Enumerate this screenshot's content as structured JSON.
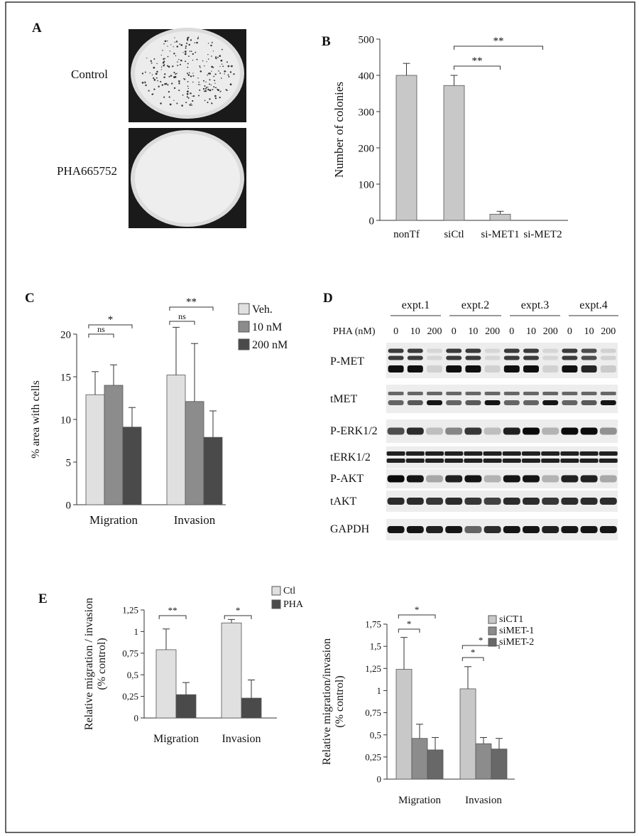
{
  "panelA": {
    "letter": "A",
    "rows": [
      {
        "label": "Control"
      },
      {
        "label": "PHA665752"
      }
    ]
  },
  "chart_data": [
    {
      "panel": "B",
      "type": "bar",
      "ylabel": "Number of colonies",
      "ylim": [
        0,
        500
      ],
      "yticks": [
        "0",
        "100",
        "200",
        "300",
        "400",
        "500"
      ],
      "categories": [
        "nonTf",
        "siCtl",
        "si-MET1",
        "si-MET2"
      ],
      "series": [
        {
          "values": [
            400,
            372,
            17,
            0
          ],
          "errors": [
            33,
            28,
            8,
            0
          ],
          "color": "#c8c8c8"
        }
      ],
      "significance": [
        {
          "from": 1,
          "to": 2,
          "label": "**"
        },
        {
          "from": 1,
          "to": 3,
          "label": "**"
        }
      ]
    },
    {
      "panel": "C",
      "type": "bar",
      "ylabel": "% area with cells",
      "ylim": [
        0,
        20
      ],
      "yticks": [
        "0",
        "5",
        "10",
        "15",
        "20"
      ],
      "categories": [
        "Migration",
        "Invasion"
      ],
      "legend_position": "top-right",
      "series": [
        {
          "name": "Veh.",
          "values": [
            12.9,
            15.2
          ],
          "errors": [
            2.7,
            5.6
          ],
          "color": "#e0e0e0"
        },
        {
          "name": "10 nM",
          "values": [
            14.0,
            12.1
          ],
          "errors": [
            2.4,
            6.8
          ],
          "color": "#8c8c8c"
        },
        {
          "name": "200 nM",
          "values": [
            9.1,
            7.9
          ],
          "errors": [
            2.3,
            3.1
          ],
          "color": "#4a4a4a"
        }
      ],
      "significance": [
        {
          "group": 0,
          "from": 0,
          "to": 1,
          "label": "ns"
        },
        {
          "group": 0,
          "from": 0,
          "to": 2,
          "label": "*"
        },
        {
          "group": 1,
          "from": 0,
          "to": 1,
          "label": "ns"
        },
        {
          "group": 1,
          "from": 0,
          "to": 2,
          "label": "**"
        }
      ]
    },
    {
      "panel": "E-left",
      "type": "bar",
      "ylabel": "Relative migration / invasion",
      "ylabel2": "(% control)",
      "ylim": [
        0,
        1.25
      ],
      "yticks": [
        "0",
        "0,25",
        "0,5",
        "0,75",
        "1",
        "1,25"
      ],
      "categories": [
        "Migration",
        "Invasion"
      ],
      "legend_position": "top-right",
      "series": [
        {
          "name": "Ctl",
          "values": [
            0.79,
            1.1
          ],
          "errors": [
            0.24,
            0.04
          ],
          "color": "#e0e0e0"
        },
        {
          "name": "PHA",
          "values": [
            0.27,
            0.23
          ],
          "errors": [
            0.14,
            0.21
          ],
          "color": "#4a4a4a"
        }
      ],
      "significance": [
        {
          "group": 0,
          "from": 0,
          "to": 1,
          "label": "**"
        },
        {
          "group": 1,
          "from": 0,
          "to": 1,
          "label": "*"
        }
      ]
    },
    {
      "panel": "E-right",
      "type": "bar",
      "ylabel": "Relative migration/invasion",
      "ylabel2": "(% control)",
      "ylim": [
        0,
        1.75
      ],
      "yticks": [
        "0",
        "0,25",
        "0,5",
        "0,75",
        "1",
        "1,25",
        "1,5",
        "1,75"
      ],
      "categories": [
        "Migration",
        "Invasion"
      ],
      "legend_position": "top-right",
      "series": [
        {
          "name": "siCT1",
          "values": [
            1.24,
            1.02
          ],
          "errors": [
            0.36,
            0.25
          ],
          "color": "#c8c8c8"
        },
        {
          "name": "siMET-1",
          "values": [
            0.46,
            0.4
          ],
          "errors": [
            0.16,
            0.07
          ],
          "color": "#8c8c8c"
        },
        {
          "name": "siMET-2",
          "values": [
            0.33,
            0.34
          ],
          "errors": [
            0.14,
            0.12
          ],
          "color": "#686868"
        }
      ],
      "significance": [
        {
          "group": 0,
          "from": 0,
          "to": 1,
          "label": "*"
        },
        {
          "group": 0,
          "from": 0,
          "to": 2,
          "label": "*"
        },
        {
          "group": 1,
          "from": 0,
          "to": 1,
          "label": "*"
        },
        {
          "group": 1,
          "from": 0,
          "to": 2,
          "label": "*"
        }
      ]
    }
  ],
  "panelD": {
    "letter": "D",
    "experiments": [
      "expt.1",
      "expt.2",
      "expt.3",
      "expt.4"
    ],
    "treatment_label": "PHA (nM)",
    "doses": [
      "0",
      "10",
      "200"
    ],
    "blots": [
      {
        "label": "P-MET",
        "intensity": [
          1,
          1,
          0.12,
          1,
          1,
          0.12,
          1,
          1,
          0.12,
          1,
          0.9,
          0.15
        ]
      },
      {
        "label": "tMET",
        "intensity": [
          0.6,
          0.65,
          0.95,
          0.6,
          0.65,
          0.95,
          0.6,
          0.6,
          0.95,
          0.6,
          0.65,
          0.95
        ]
      },
      {
        "label": "P-ERK1/2",
        "intensity": [
          0.7,
          0.85,
          0.2,
          0.45,
          0.8,
          0.2,
          0.9,
          1,
          0.25,
          1,
          1,
          0.4
        ]
      },
      {
        "label": "tERK1/2",
        "intensity": [
          0.9,
          0.9,
          0.9,
          0.9,
          0.9,
          0.9,
          0.9,
          0.9,
          0.9,
          0.9,
          0.9,
          0.9
        ]
      },
      {
        "label": "P-AKT",
        "intensity": [
          1,
          0.95,
          0.3,
          0.9,
          0.95,
          0.25,
          0.95,
          0.95,
          0.25,
          0.9,
          0.9,
          0.3
        ]
      },
      {
        "label": "tAKT",
        "intensity": [
          0.85,
          0.85,
          0.8,
          0.85,
          0.8,
          0.75,
          0.85,
          0.85,
          0.8,
          0.85,
          0.85,
          0.85
        ]
      },
      {
        "label": "GAPDH",
        "intensity": [
          0.95,
          0.95,
          0.9,
          0.95,
          0.6,
          0.85,
          0.95,
          0.95,
          0.9,
          0.95,
          0.95,
          0.95
        ]
      }
    ]
  },
  "letters": {
    "B": "B",
    "C": "C",
    "E": "E"
  }
}
